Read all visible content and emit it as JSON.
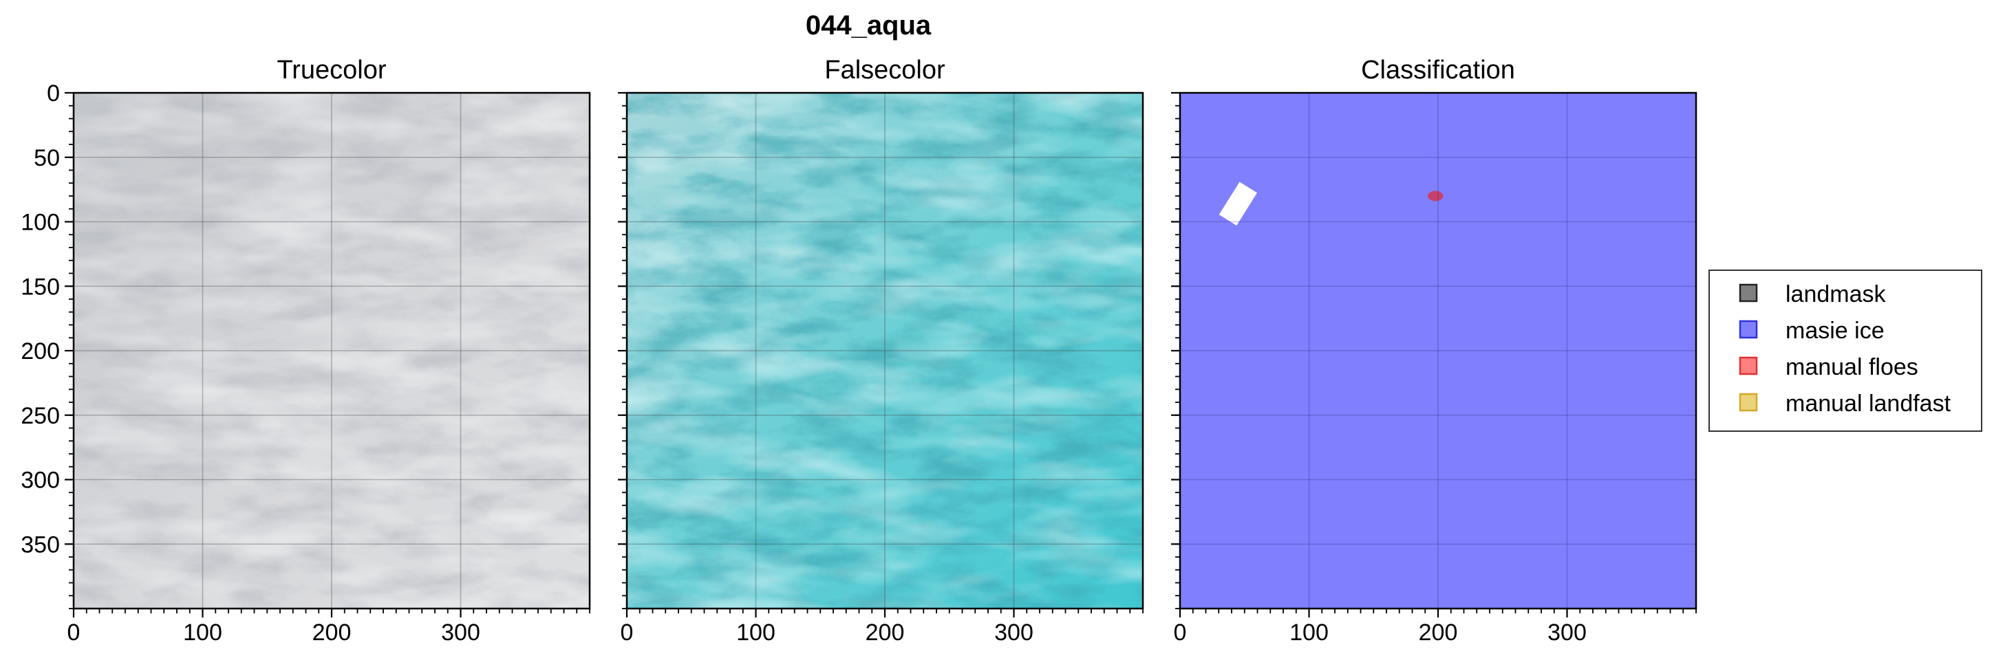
{
  "chart_data": {
    "type": "image-grid",
    "suptitle": "044_aqua",
    "xlim": [
      0,
      400
    ],
    "ylim": [
      400,
      0
    ],
    "xticks": [
      0,
      100,
      200,
      300
    ],
    "yticks": [
      0,
      50,
      100,
      150,
      200,
      250,
      300,
      350
    ],
    "minor_step": 10,
    "panels": [
      {
        "title": "Truecolor",
        "kind": "truecolor",
        "show_y_ticklabels": true
      },
      {
        "title": "Falsecolor",
        "kind": "falsecolor",
        "show_y_ticklabels": false
      },
      {
        "title": "Classification",
        "kind": "classification",
        "show_y_ticklabels": false
      }
    ],
    "classification": {
      "background_class": "masie ice",
      "no_data_patch": {
        "shape": "rotated-rectangle",
        "center": [
          45,
          86
        ],
        "length": 30,
        "width": 16,
        "angle_deg": -58,
        "color": "#ffffff"
      },
      "floe_patch": {
        "class": "manual floes",
        "center": [
          198,
          80
        ],
        "rx": 6,
        "ry": 4,
        "color": "#c8406a"
      }
    },
    "legend": {
      "location": "right",
      "items": [
        {
          "label": "landmask",
          "color": "#808080",
          "edge": "#222222"
        },
        {
          "label": "masie ice",
          "color": "#8080ff",
          "edge": "#3030e0"
        },
        {
          "label": "manual floes",
          "color": "#ff8080",
          "edge": "#e03030"
        },
        {
          "label": "manual landfast",
          "color": "#ecd27a",
          "edge": "#d4a82a"
        }
      ]
    }
  }
}
